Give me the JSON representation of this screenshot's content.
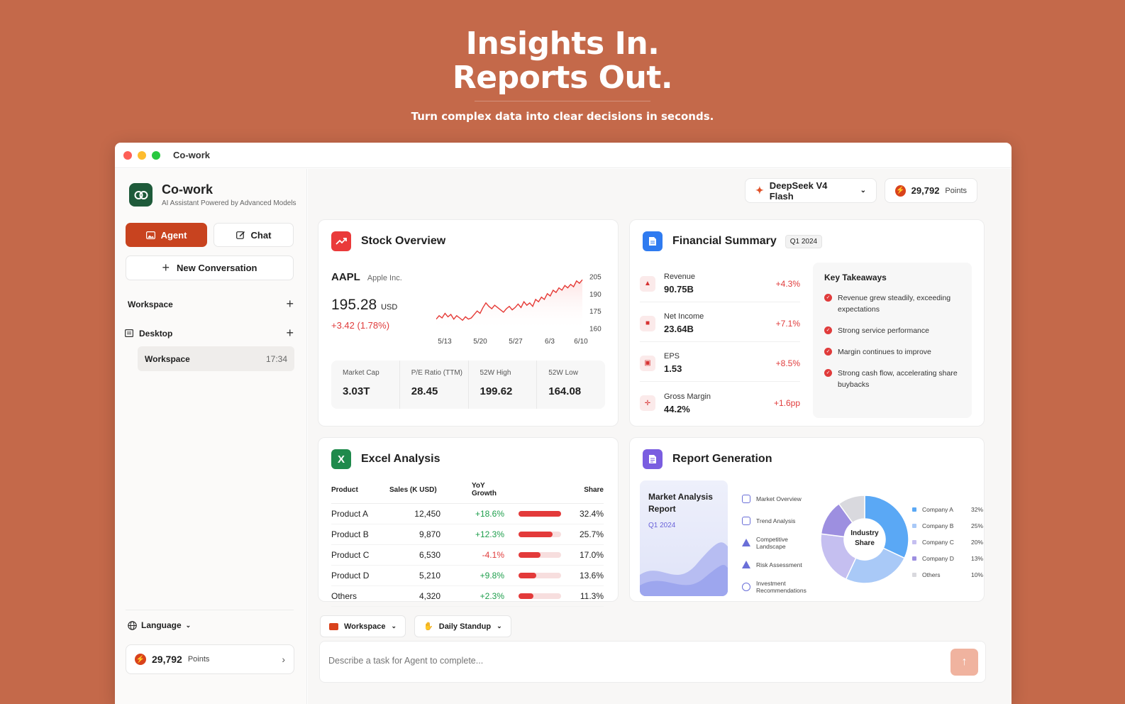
{
  "hero": {
    "line1": "Insights In.",
    "line2": "Reports Out.",
    "subtitle": "Turn complex data into clear decisions in seconds."
  },
  "window": {
    "title": "Co-work"
  },
  "sidebar": {
    "app_name": "Co-work",
    "tagline": "AI Assistant Powered by Advanced Models",
    "agent_label": "Agent",
    "chat_label": "Chat",
    "new_conversation": "New Conversation",
    "workspace_section": "Workspace",
    "desktop_section": "Desktop",
    "workspace_item": {
      "label": "Workspace",
      "time": "17:34"
    },
    "language_label": "Language",
    "points": {
      "value": "29,792",
      "label": "Points"
    }
  },
  "topbar": {
    "model": "DeepSeek V4 Flash",
    "points": {
      "value": "29,792",
      "label": "Points"
    }
  },
  "stock": {
    "title": "Stock Overview",
    "ticker": "AAPL",
    "company": "Apple Inc.",
    "price": "195.28",
    "currency": "USD",
    "change": "+3.42 (1.78%)",
    "stats": [
      {
        "label": "Market Cap",
        "value": "3.03T"
      },
      {
        "label": "P/E Ratio (TTM)",
        "value": "28.45"
      },
      {
        "label": "52W High",
        "value": "199.62"
      },
      {
        "label": "52W Low",
        "value": "164.08"
      }
    ]
  },
  "financial": {
    "title": "Financial Summary",
    "period": "Q1 2024",
    "metrics": [
      {
        "label": "Revenue",
        "value": "90.75B",
        "delta": "+4.3%"
      },
      {
        "label": "Net Income",
        "value": "23.64B",
        "delta": "+7.1%"
      },
      {
        "label": "EPS",
        "value": "1.53",
        "delta": "+8.5%"
      },
      {
        "label": "Gross Margin",
        "value": "44.2%",
        "delta": "+1.6pp"
      }
    ],
    "takeaways_title": "Key Takeaways",
    "takeaways": [
      "Revenue grew steadily, exceeding expectations",
      "Strong service performance",
      "Margin continues to improve",
      "Strong cash flow, accelerating share buybacks"
    ]
  },
  "excel": {
    "title": "Excel Analysis",
    "headers": {
      "product": "Product",
      "sales": "Sales (K USD)",
      "growth": "YoY Growth",
      "share": "Share"
    },
    "rows": [
      {
        "product": "Product A",
        "sales": "12,450",
        "growth": "+18.6%",
        "share": "32.4%",
        "share_value": 32.4
      },
      {
        "product": "Product B",
        "sales": "9,870",
        "growth": "+12.3%",
        "share": "25.7%",
        "share_value": 25.7
      },
      {
        "product": "Product C",
        "sales": "6,530",
        "growth": "-4.1%",
        "share": "17.0%",
        "share_value": 17.0
      },
      {
        "product": "Product D",
        "sales": "5,210",
        "growth": "+9.8%",
        "share": "13.6%",
        "share_value": 13.6
      },
      {
        "product": "Others",
        "sales": "4,320",
        "growth": "+2.3%",
        "share": "11.3%",
        "share_value": 11.3
      }
    ]
  },
  "report": {
    "title": "Report Generation",
    "cover_title": "Market Analysis Report",
    "cover_period": "Q1 2024",
    "sections": [
      "Market Overview",
      "Trend Analysis",
      "Competitive Landscape",
      "Risk Assessment",
      "Investment Recommendations"
    ],
    "donut_label": "Industry Share"
  },
  "composer": {
    "workspace_pill": "Workspace",
    "standup_pill": "Daily Standup",
    "placeholder": "Describe a task for Agent to complete..."
  },
  "chart_data": [
    {
      "type": "area",
      "title": "",
      "x_ticks": [
        "5/13",
        "5/20",
        "5/27",
        "6/3",
        "6/10"
      ],
      "y_ticks": [
        160,
        175,
        190,
        205
      ],
      "ylim": [
        158,
        207
      ],
      "series": [
        {
          "values": [
            168,
            171,
            169,
            173,
            170,
            172,
            168,
            171,
            169,
            167,
            170,
            168,
            169,
            172,
            175,
            173,
            178,
            182,
            179,
            177,
            180,
            178,
            176,
            174,
            177,
            179,
            176,
            178,
            181,
            178,
            183,
            180,
            182,
            179,
            185,
            183,
            187,
            185,
            190,
            188,
            193,
            191,
            195,
            193,
            197,
            195,
            198,
            196,
            201,
            199,
            202
          ]
        }
      ],
      "colors": {
        "line": "#e53935",
        "fill": "#fde4e4"
      }
    },
    {
      "type": "pie",
      "title": "Industry Share",
      "categories": [
        "Company A",
        "Company B",
        "Company C",
        "Company D",
        "Others"
      ],
      "values": [
        32,
        25,
        20,
        13,
        10
      ],
      "labels": [
        "32%",
        "25%",
        "20%",
        "13%",
        "10%"
      ],
      "colors": [
        "#5aa8f5",
        "#a9c9f7",
        "#c5bff0",
        "#9d8fe0",
        "#d9d9de"
      ]
    }
  ],
  "colors": {
    "accent": "#c8431f",
    "background": "#c4694a",
    "positive": "#1d9e4b",
    "negative": "#e03b3b"
  }
}
